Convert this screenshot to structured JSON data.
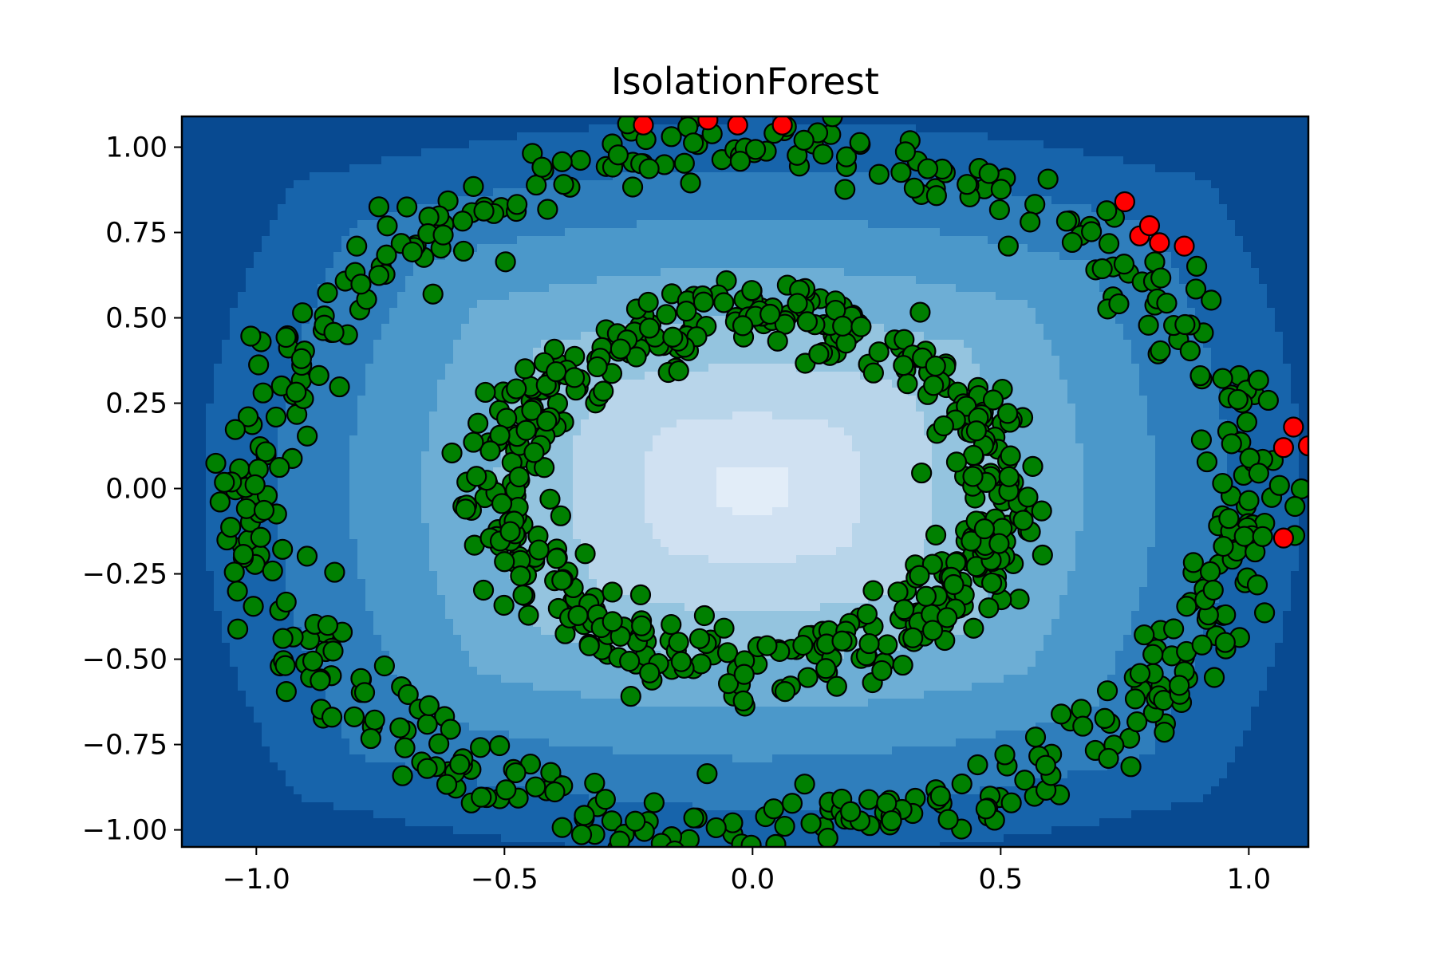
{
  "chart_data": {
    "type": "scatter",
    "title": "IsolationForest",
    "xlabel": "",
    "ylabel": "",
    "xlim": [
      -1.15,
      1.12
    ],
    "ylim": [
      -1.05,
      1.09
    ],
    "x_ticks": [
      -1.0,
      -0.5,
      0.0,
      0.5,
      1.0
    ],
    "x_tick_labels": [
      "−1.0",
      "−0.5",
      "0.0",
      "0.5",
      "1.0"
    ],
    "y_ticks": [
      -1.0,
      -0.75,
      -0.5,
      -0.25,
      0.0,
      0.25,
      0.5,
      0.75,
      1.0
    ],
    "y_tick_labels": [
      "−1.00",
      "−0.75",
      "−0.50",
      "−0.25",
      "0.00",
      "0.25",
      "0.50",
      "0.75",
      "1.00"
    ],
    "grid": false,
    "background": "contour-filled anomaly score map (Blues colormap)",
    "colors": {
      "inlier": "#008000",
      "outlier": "#ff0000",
      "contour_levels": [
        "#084a91",
        "#1764ab",
        "#2f7ebc",
        "#4b98ca",
        "#6daed5",
        "#94c4df",
        "#b8d5ea",
        "#d0e1f2",
        "#e2edf8"
      ]
    },
    "rings": [
      {
        "name": "outer ring",
        "radius": 1.0,
        "noise": 0.05,
        "count": 500
      },
      {
        "name": "inner ring",
        "radius": 0.5,
        "noise": 0.05,
        "count": 500
      }
    ],
    "outliers": [
      {
        "x": -0.22,
        "y": 1.065
      },
      {
        "x": -0.09,
        "y": 1.08
      },
      {
        "x": -0.03,
        "y": 1.065
      },
      {
        "x": 0.06,
        "y": 1.065
      },
      {
        "x": 0.75,
        "y": 0.84
      },
      {
        "x": 0.78,
        "y": 0.74
      },
      {
        "x": 0.8,
        "y": 0.77
      },
      {
        "x": 0.82,
        "y": 0.72
      },
      {
        "x": 0.87,
        "y": 0.71
      },
      {
        "x": 1.07,
        "y": 0.12
      },
      {
        "x": 1.09,
        "y": 0.18
      },
      {
        "x": 1.12,
        "y": 0.125
      },
      {
        "x": 1.07,
        "y": -0.145
      }
    ]
  }
}
